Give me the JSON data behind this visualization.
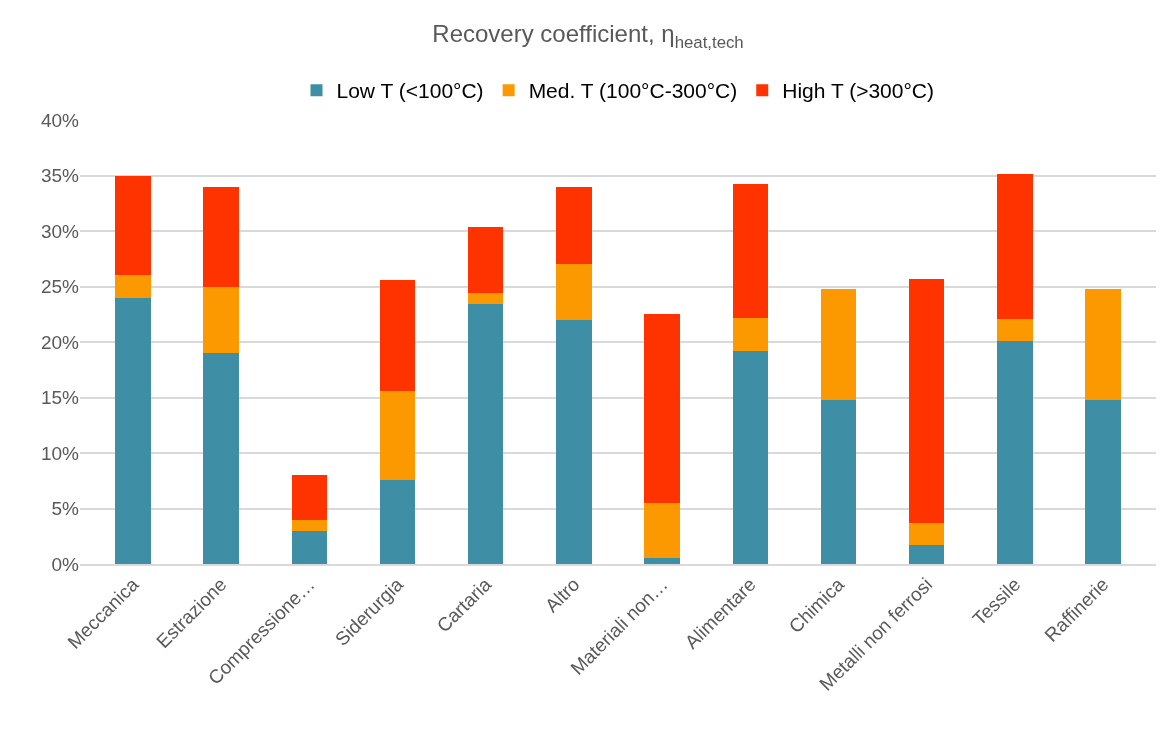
{
  "chart_data": {
    "type": "bar",
    "stacked": true,
    "title": "Recovery coefficient, η$_{heat,tech}$",
    "categories": [
      "Meccanica",
      "Estrazione",
      "Compressione…",
      "Siderurgia",
      "Cartaria",
      "Altro",
      "Materiali non…",
      "Alimentare",
      "Chimica",
      "Metalli non ferrosi",
      "Tessile",
      "Raffinerie"
    ],
    "series": [
      {
        "name": "Low T (<100°C)",
        "color": "#3e8ea5",
        "values": [
          24,
          19,
          3,
          7.6,
          23.4,
          22,
          0.5,
          19.2,
          14.8,
          1.7,
          20.1,
          14.8
        ]
      },
      {
        "name": "Med. T (100°C-300°C)",
        "color": "#fd9900",
        "values": [
          2,
          6,
          1,
          8,
          1,
          5,
          5,
          3,
          10,
          2,
          2,
          10
        ]
      },
      {
        "name": "High T (>300°C)",
        "color": "#ff3300",
        "values": [
          9,
          9,
          4,
          10,
          6,
          7,
          17,
          12,
          0,
          22,
          13,
          0
        ]
      }
    ],
    "ylim": [
      0,
      40
    ],
    "yticks": [
      {
        "value": 0,
        "label": "0%"
      },
      {
        "value": 5,
        "label": "5%"
      },
      {
        "value": 10,
        "label": "10%"
      },
      {
        "value": 15,
        "label": "15%"
      },
      {
        "value": 20,
        "label": "20%"
      },
      {
        "value": 25,
        "label": "25%"
      },
      {
        "value": 30,
        "label": "30%"
      },
      {
        "value": 35,
        "label": "35%"
      },
      {
        "value": 40,
        "label": "40%"
      }
    ],
    "grid": "y",
    "legend": "top"
  }
}
